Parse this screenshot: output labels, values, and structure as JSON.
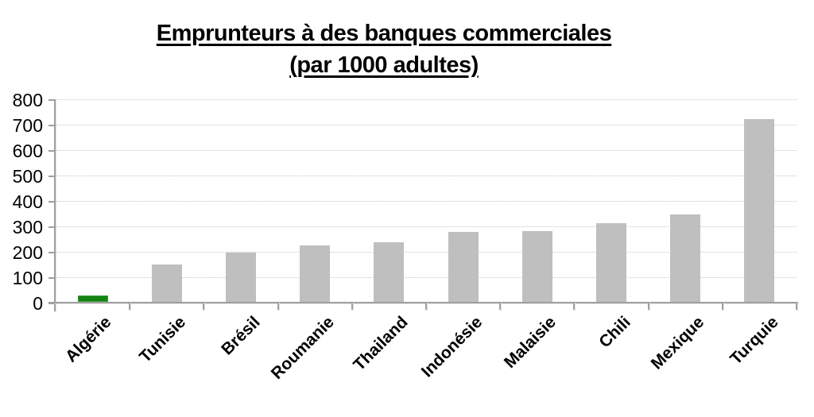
{
  "chart_data": {
    "type": "bar",
    "title": "Emprunteurs à des banques commerciales",
    "subtitle": "(par 1000 adultes)",
    "categories": [
      "Algérie",
      "Tunisie",
      "Brésil",
      "Roumanie",
      "Thailand",
      "Indonésie",
      "Malaisie",
      "Chili",
      "Mexique",
      "Turquie"
    ],
    "values": [
      25,
      147,
      195,
      221,
      235,
      275,
      278,
      310,
      343,
      718
    ],
    "highlight_index": 0,
    "xlabel": "",
    "ylabel": "",
    "ylim": [
      0,
      800
    ],
    "yticks": [
      0,
      100,
      200,
      300,
      400,
      500,
      600,
      700,
      800
    ],
    "grid": "horizontal-dotted",
    "legend": "none",
    "colors": {
      "bar": "#bfbfbf",
      "highlight": "#128312",
      "highlight_border": "#3d9c3d",
      "gridline": "#c6c6c6",
      "axis": "#a0a0a0",
      "text": "#000000"
    }
  }
}
